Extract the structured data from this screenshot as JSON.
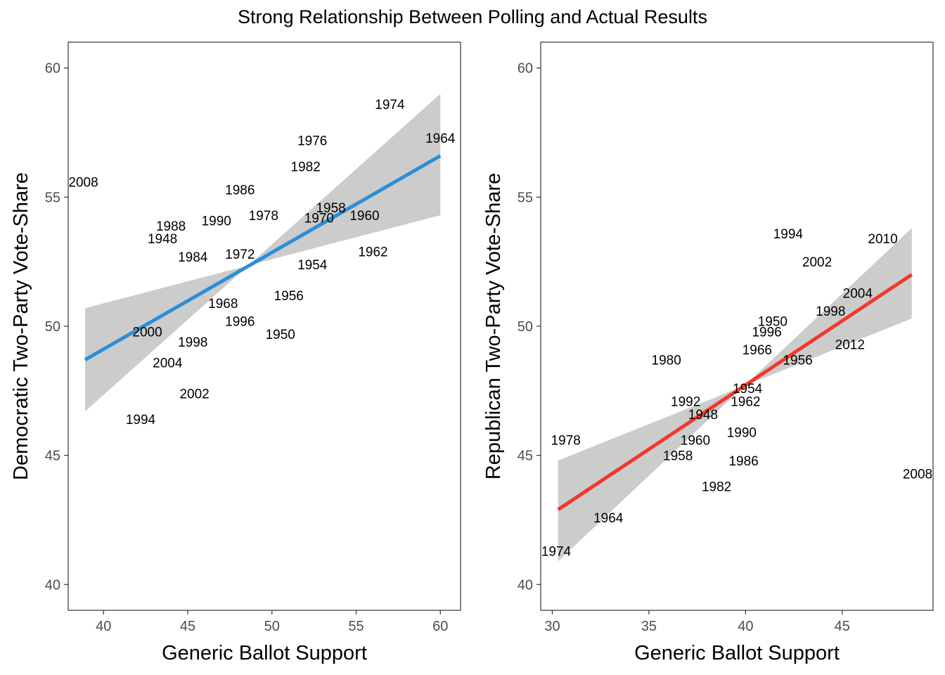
{
  "title": "Strong Relationship Between Polling and Actual Results",
  "chart_data": [
    {
      "type": "scatter",
      "xlabel": "Generic Ballot Support",
      "ylabel": "Democratic Two-Party Vote-Share",
      "xlim": [
        37.9,
        61.2
      ],
      "ylim": [
        39.0,
        61.0
      ],
      "xticks": [
        "40",
        "45",
        "50",
        "55",
        "60"
      ],
      "yticks": [
        "40",
        "45",
        "50",
        "55",
        "60"
      ],
      "line_color": "#2b8fd6",
      "band_color": "#cccccc",
      "fit": {
        "x": [
          38.9,
          60.0
        ],
        "y": [
          48.7,
          56.6
        ],
        "band_x0": [
          46.7,
          50.7
        ],
        "band_x1": [
          54.3,
          59.0
        ]
      },
      "points": [
        {
          "label": "2008",
          "x": 38.8,
          "y": 55.6
        },
        {
          "label": "1974",
          "x": 57.0,
          "y": 58.6
        },
        {
          "label": "1964",
          "x": 60.0,
          "y": 57.3
        },
        {
          "label": "1976",
          "x": 52.4,
          "y": 57.2
        },
        {
          "label": "1982",
          "x": 52.0,
          "y": 56.2
        },
        {
          "label": "1986",
          "x": 48.1,
          "y": 55.3
        },
        {
          "label": "1958",
          "x": 53.5,
          "y": 54.6
        },
        {
          "label": "1960",
          "x": 55.5,
          "y": 54.3
        },
        {
          "label": "1978",
          "x": 49.5,
          "y": 54.3
        },
        {
          "label": "1970",
          "x": 52.8,
          "y": 54.2
        },
        {
          "label": "1990",
          "x": 46.7,
          "y": 54.1
        },
        {
          "label": "1988",
          "x": 44.0,
          "y": 53.9
        },
        {
          "label": "1948",
          "x": 43.5,
          "y": 53.4
        },
        {
          "label": "1984",
          "x": 45.3,
          "y": 52.7
        },
        {
          "label": "1972",
          "x": 48.1,
          "y": 52.8
        },
        {
          "label": "1962",
          "x": 56.0,
          "y": 52.9
        },
        {
          "label": "1954",
          "x": 52.4,
          "y": 52.4
        },
        {
          "label": "1956",
          "x": 51.0,
          "y": 51.2
        },
        {
          "label": "1968",
          "x": 47.1,
          "y": 50.9
        },
        {
          "label": "1996",
          "x": 48.1,
          "y": 50.2
        },
        {
          "label": "2000",
          "x": 42.6,
          "y": 49.8
        },
        {
          "label": "1950",
          "x": 50.5,
          "y": 49.7
        },
        {
          "label": "1998",
          "x": 45.3,
          "y": 49.4
        },
        {
          "label": "2004",
          "x": 43.8,
          "y": 48.6
        },
        {
          "label": "2002",
          "x": 45.4,
          "y": 47.4
        },
        {
          "label": "1994",
          "x": 42.2,
          "y": 46.4
        }
      ]
    },
    {
      "type": "scatter",
      "xlabel": "Generic Ballot Support",
      "ylabel": "Republican Two-Party Vote-Share",
      "xlim": [
        29.4,
        49.7
      ],
      "ylim": [
        39.0,
        61.0
      ],
      "xticks": [
        "30",
        "35",
        "40",
        "45"
      ],
      "yticks": [
        "40",
        "45",
        "50",
        "55",
        "60"
      ],
      "line_color": "#f0392b",
      "band_color": "#cccccc",
      "fit": {
        "x": [
          30.3,
          48.6
        ],
        "y": [
          42.9,
          52.0
        ],
        "band_x0": [
          40.9,
          44.8
        ],
        "band_x1": [
          50.3,
          53.8
        ]
      },
      "points": [
        {
          "label": "1994",
          "x": 42.2,
          "y": 53.6
        },
        {
          "label": "2010",
          "x": 47.1,
          "y": 53.4
        },
        {
          "label": "2002",
          "x": 43.7,
          "y": 52.5
        },
        {
          "label": "2004",
          "x": 45.8,
          "y": 51.3
        },
        {
          "label": "1998",
          "x": 44.4,
          "y": 50.6
        },
        {
          "label": "1950",
          "x": 41.4,
          "y": 50.2
        },
        {
          "label": "1996",
          "x": 41.1,
          "y": 49.8
        },
        {
          "label": "2012",
          "x": 45.4,
          "y": 49.3
        },
        {
          "label": "1966",
          "x": 40.6,
          "y": 49.1
        },
        {
          "label": "1956",
          "x": 42.7,
          "y": 48.7
        },
        {
          "label": "1980",
          "x": 35.9,
          "y": 48.7
        },
        {
          "label": "1954",
          "x": 40.1,
          "y": 47.6
        },
        {
          "label": "1992",
          "x": 36.9,
          "y": 47.1
        },
        {
          "label": "1962",
          "x": 40.0,
          "y": 47.1
        },
        {
          "label": "1948",
          "x": 37.8,
          "y": 46.6
        },
        {
          "label": "1990",
          "x": 39.8,
          "y": 45.9
        },
        {
          "label": "1978",
          "x": 30.7,
          "y": 45.6
        },
        {
          "label": "1960",
          "x": 37.4,
          "y": 45.6
        },
        {
          "label": "1958",
          "x": 36.5,
          "y": 45.0
        },
        {
          "label": "1986",
          "x": 39.9,
          "y": 44.8
        },
        {
          "label": "2008",
          "x": 48.9,
          "y": 44.3
        },
        {
          "label": "1982",
          "x": 38.5,
          "y": 43.8
        },
        {
          "label": "1964",
          "x": 32.9,
          "y": 42.6
        },
        {
          "label": "1974",
          "x": 30.2,
          "y": 41.3
        }
      ]
    }
  ]
}
